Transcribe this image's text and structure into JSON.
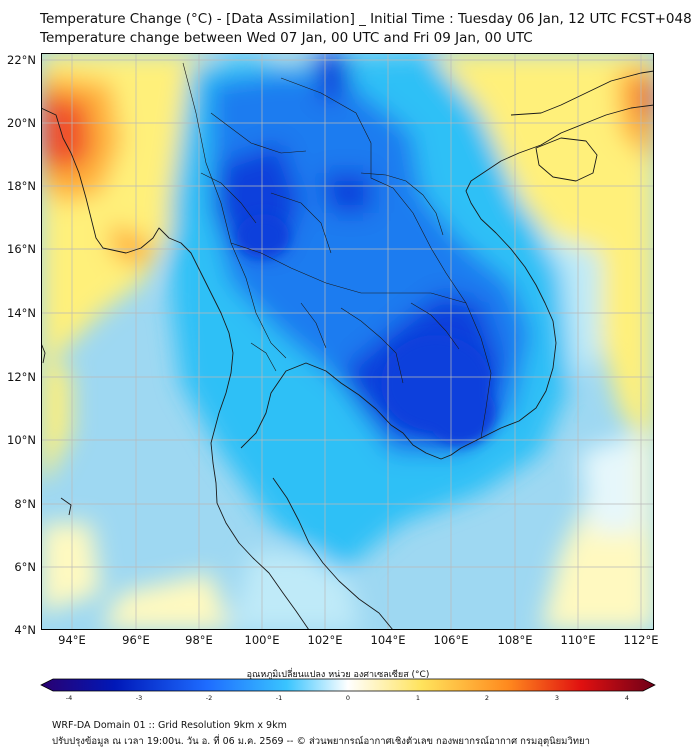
{
  "header": {
    "title_line1": "Temperature Change (°C) - [Data Assimilation] _ Initial Time : Tuesday 06 Jan, 12 UTC FCST+048",
    "title_line2": "Temperature change between Wed 07 Jan, 00 UTC and Fri 09 Jan, 00 UTC"
  },
  "axes": {
    "lat_labels": [
      "22°N",
      "20°N",
      "18°N",
      "16°N",
      "14°N",
      "12°N",
      "10°N",
      "8°N",
      "6°N",
      "4°N"
    ],
    "lon_labels": [
      "94°E",
      "96°E",
      "98°E",
      "100°E",
      "102°E",
      "104°E",
      "106°E",
      "108°E",
      "110°E",
      "112°E"
    ]
  },
  "colorbar": {
    "label": "อุณหภูมิเปลี่ยนแปลง หน่วย องศาเซลเซียส (°C)",
    "ticks": [
      "-4",
      "-3",
      "-2",
      "-1",
      "0",
      "1",
      "2",
      "3",
      "4"
    ],
    "colors": {
      "min": "#2a0070",
      "cold_deep": "#0018b8",
      "cold": "#1e6cff",
      "cool": "#39c4ff",
      "neutral": "#ffffff",
      "warm": "#ffe35c",
      "hot": "#ff8a1e",
      "hottest": "#e01010",
      "max": "#6e0018"
    }
  },
  "footer": {
    "line1": "WRF-DA Domain 01 :: Grid Resolution 9km x 9km",
    "line2": "ปรับปรุงข้อมูล ณ เวลา 19:00น. วัน อ. ที่ 06 ม.ค. 2569 -- © ส่วนพยากรณ์อากาศเชิงตัวเลข กองพยากรณ์อากาศ กรมอุตุนิยมวิทยา"
  },
  "map_colors": {
    "background": "#9ed8f2",
    "yellow": "#fff07a",
    "light_yellow": "#fff9c0",
    "orange": "#ffb03a",
    "red": "#f0502a",
    "light_blue": "#bfeaf8",
    "white_blue": "#e6f7fb",
    "cyan": "#2ec0f6",
    "blue": "#1b7cf0",
    "deep_blue": "#0a3fdc",
    "grid": "#b9b9b9",
    "coast": "#1a1a1a"
  }
}
